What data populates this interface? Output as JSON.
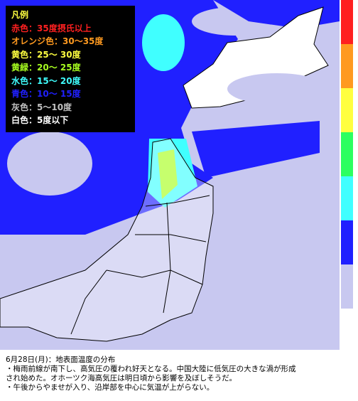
{
  "legend": {
    "title": "凡例",
    "items": [
      {
        "label": "赤色：35度摂氏以上",
        "color": "#ff2020"
      },
      {
        "label": "オレンジ色：30〜35度",
        "color": "#ff9a20"
      },
      {
        "label": "黄色：25〜 30度",
        "color": "#ffff40"
      },
      {
        "label": "黄緑：20〜 25度",
        "color": "#a8ff20"
      },
      {
        "label": "水色：15〜 20度",
        "color": "#40ffff"
      },
      {
        "label": "青色：10〜 15度",
        "color": "#2020ff"
      },
      {
        "label": "灰色：5〜10度",
        "color": "#c0c0c0"
      },
      {
        "label": "白色：5度以下",
        "color": "#ffffff"
      }
    ]
  },
  "caption": {
    "title": "6月28日(月)：地表面温度の分布",
    "lines": [
      "・梅雨前線が南下し、高気圧の覆われ好天となる。中国大陸に低気圧の大きな渦が形成",
      "され始めた。オホーツク海高気圧は明日頃から影響を及ぼしそうだ。",
      "・午後からやませが入り、沿岸部を中心に気温が上がらない。"
    ]
  }
}
